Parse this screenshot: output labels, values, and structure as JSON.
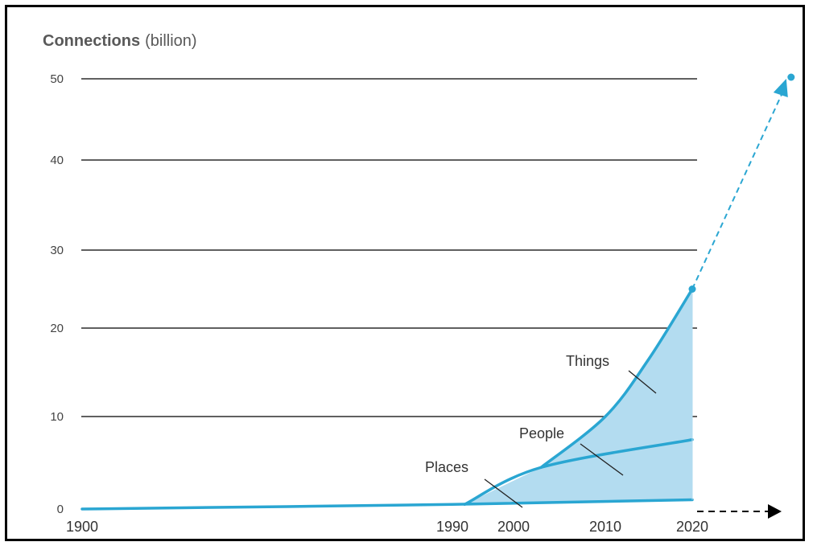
{
  "chart_data": {
    "type": "area",
    "title": "",
    "ylabel": {
      "main": "Connections",
      "unit": "(billion)"
    },
    "xlabel": "",
    "ylim": [
      0,
      50
    ],
    "yticks": [
      0,
      10,
      20,
      30,
      40,
      50
    ],
    "xticks": [
      1900,
      1990,
      2000,
      2010,
      2020
    ],
    "grid": true,
    "colors": {
      "line": "#2aa6d2",
      "fill": "#b3dcf0",
      "grid": "#000000",
      "axis_arrow": "#000000"
    },
    "series": [
      {
        "name": "Places",
        "x": [
          1900,
          1990,
          2020
        ],
        "y": [
          0,
          0.5,
          1
        ]
      },
      {
        "name": "People",
        "x": [
          1992,
          2003,
          2020
        ],
        "y": [
          0.5,
          4.5,
          7.5
        ]
      },
      {
        "name": "Things",
        "x": [
          2003,
          2010,
          2015,
          2020
        ],
        "y": [
          4.5,
          10,
          16.5,
          25
        ]
      }
    ],
    "projection": {
      "x": [
        2020,
        2031
      ],
      "y": [
        25,
        50
      ],
      "style": "dashed"
    }
  }
}
